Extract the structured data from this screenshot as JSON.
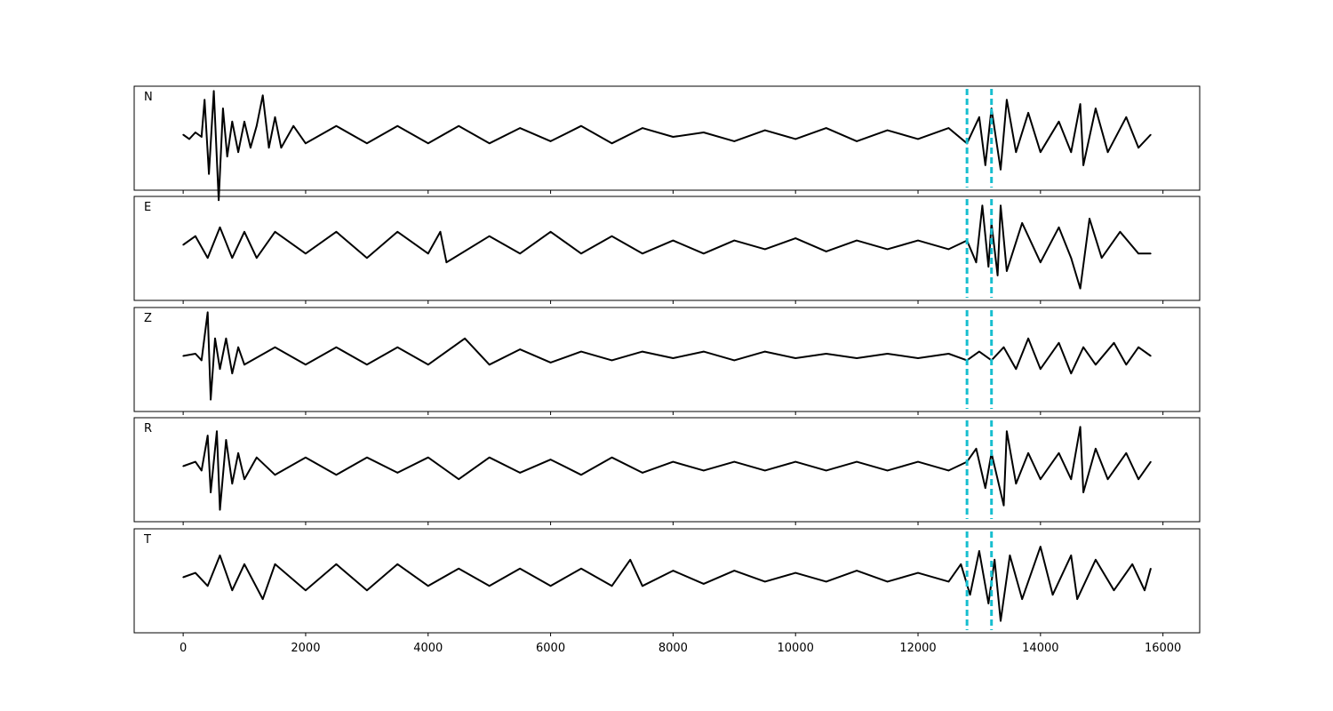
{
  "chart_data": {
    "type": "line",
    "xlim": [
      -800,
      16600
    ],
    "x_ticks": [
      "0",
      "2000",
      "4000",
      "6000",
      "8000",
      "10000",
      "12000",
      "14000",
      "16000"
    ],
    "x_tick_values": [
      0,
      2000,
      4000,
      6000,
      8000,
      10000,
      12000,
      14000,
      16000
    ],
    "markers": [
      {
        "x": 12800,
        "style": "dashed",
        "color": "#17becf"
      },
      {
        "x": 13200,
        "style": "dashed",
        "color": "#17becf"
      }
    ],
    "trace_color": "#000000",
    "grid": false,
    "y_ticks_shown": false,
    "panels": [
      {
        "label": "N",
        "series": [
          {
            "x": 0,
            "y": 0.0
          },
          {
            "x": 100,
            "y": -0.1
          },
          {
            "x": 200,
            "y": 0.05
          },
          {
            "x": 300,
            "y": -0.05
          },
          {
            "x": 350,
            "y": 0.8
          },
          {
            "x": 420,
            "y": -0.9
          },
          {
            "x": 500,
            "y": 1.0
          },
          {
            "x": 580,
            "y": -1.5
          },
          {
            "x": 650,
            "y": 0.6
          },
          {
            "x": 720,
            "y": -0.5
          },
          {
            "x": 800,
            "y": 0.3
          },
          {
            "x": 900,
            "y": -0.4
          },
          {
            "x": 1000,
            "y": 0.3
          },
          {
            "x": 1100,
            "y": -0.3
          },
          {
            "x": 1200,
            "y": 0.2
          },
          {
            "x": 1300,
            "y": 0.9
          },
          {
            "x": 1400,
            "y": -0.3
          },
          {
            "x": 1500,
            "y": 0.4
          },
          {
            "x": 1600,
            "y": -0.3
          },
          {
            "x": 1800,
            "y": 0.2
          },
          {
            "x": 2000,
            "y": -0.2
          },
          {
            "x": 2500,
            "y": 0.2
          },
          {
            "x": 3000,
            "y": -0.2
          },
          {
            "x": 3500,
            "y": 0.2
          },
          {
            "x": 4000,
            "y": -0.2
          },
          {
            "x": 4500,
            "y": 0.2
          },
          {
            "x": 5000,
            "y": -0.2
          },
          {
            "x": 5500,
            "y": 0.15
          },
          {
            "x": 6000,
            "y": -0.15
          },
          {
            "x": 6500,
            "y": 0.2
          },
          {
            "x": 7000,
            "y": -0.2
          },
          {
            "x": 7500,
            "y": 0.15
          },
          {
            "x": 8000,
            "y": -0.05
          },
          {
            "x": 8500,
            "y": 0.05
          },
          {
            "x": 9000,
            "y": -0.15
          },
          {
            "x": 9500,
            "y": 0.1
          },
          {
            "x": 10000,
            "y": -0.1
          },
          {
            "x": 10500,
            "y": 0.15
          },
          {
            "x": 11000,
            "y": -0.15
          },
          {
            "x": 11500,
            "y": 0.1
          },
          {
            "x": 12000,
            "y": -0.1
          },
          {
            "x": 12500,
            "y": 0.15
          },
          {
            "x": 12800,
            "y": -0.2
          },
          {
            "x": 13000,
            "y": 0.4
          },
          {
            "x": 13100,
            "y": -0.7
          },
          {
            "x": 13200,
            "y": 0.6
          },
          {
            "x": 13350,
            "y": -0.8
          },
          {
            "x": 13450,
            "y": 0.8
          },
          {
            "x": 13600,
            "y": -0.4
          },
          {
            "x": 13800,
            "y": 0.5
          },
          {
            "x": 14000,
            "y": -0.4
          },
          {
            "x": 14300,
            "y": 0.3
          },
          {
            "x": 14500,
            "y": -0.4
          },
          {
            "x": 14650,
            "y": 0.7
          },
          {
            "x": 14700,
            "y": -0.7
          },
          {
            "x": 14900,
            "y": 0.6
          },
          {
            "x": 15100,
            "y": -0.4
          },
          {
            "x": 15400,
            "y": 0.4
          },
          {
            "x": 15600,
            "y": -0.3
          },
          {
            "x": 15800,
            "y": 0.0
          }
        ]
      },
      {
        "label": "E",
        "series": [
          {
            "x": 0,
            "y": 0.0
          },
          {
            "x": 200,
            "y": 0.2
          },
          {
            "x": 400,
            "y": -0.3
          },
          {
            "x": 600,
            "y": 0.4
          },
          {
            "x": 800,
            "y": -0.3
          },
          {
            "x": 1000,
            "y": 0.3
          },
          {
            "x": 1200,
            "y": -0.3
          },
          {
            "x": 1500,
            "y": 0.3
          },
          {
            "x": 2000,
            "y": -0.2
          },
          {
            "x": 2500,
            "y": 0.3
          },
          {
            "x": 3000,
            "y": -0.3
          },
          {
            "x": 3500,
            "y": 0.3
          },
          {
            "x": 4000,
            "y": -0.2
          },
          {
            "x": 4200,
            "y": 0.3
          },
          {
            "x": 4300,
            "y": -0.4
          },
          {
            "x": 5000,
            "y": 0.2
          },
          {
            "x": 5500,
            "y": -0.2
          },
          {
            "x": 6000,
            "y": 0.3
          },
          {
            "x": 6500,
            "y": -0.2
          },
          {
            "x": 7000,
            "y": 0.2
          },
          {
            "x": 7500,
            "y": -0.2
          },
          {
            "x": 8000,
            "y": 0.1
          },
          {
            "x": 8500,
            "y": -0.2
          },
          {
            "x": 9000,
            "y": 0.1
          },
          {
            "x": 9500,
            "y": -0.1
          },
          {
            "x": 10000,
            "y": 0.15
          },
          {
            "x": 10500,
            "y": -0.15
          },
          {
            "x": 11000,
            "y": 0.1
          },
          {
            "x": 11500,
            "y": -0.1
          },
          {
            "x": 12000,
            "y": 0.1
          },
          {
            "x": 12500,
            "y": -0.1
          },
          {
            "x": 12800,
            "y": 0.1
          },
          {
            "x": 12950,
            "y": -0.4
          },
          {
            "x": 13050,
            "y": 0.9
          },
          {
            "x": 13150,
            "y": -0.5
          },
          {
            "x": 13200,
            "y": 0.5
          },
          {
            "x": 13300,
            "y": -0.7
          },
          {
            "x": 13350,
            "y": 0.9
          },
          {
            "x": 13450,
            "y": -0.6
          },
          {
            "x": 13700,
            "y": 0.5
          },
          {
            "x": 14000,
            "y": -0.4
          },
          {
            "x": 14300,
            "y": 0.4
          },
          {
            "x": 14500,
            "y": -0.3
          },
          {
            "x": 14650,
            "y": -1.0
          },
          {
            "x": 14800,
            "y": 0.6
          },
          {
            "x": 15000,
            "y": -0.3
          },
          {
            "x": 15300,
            "y": 0.3
          },
          {
            "x": 15600,
            "y": -0.2
          },
          {
            "x": 15800,
            "y": -0.2
          }
        ]
      },
      {
        "label": "Z",
        "series": [
          {
            "x": 0,
            "y": 0.0
          },
          {
            "x": 200,
            "y": 0.05
          },
          {
            "x": 300,
            "y": -0.1
          },
          {
            "x": 400,
            "y": 1.0
          },
          {
            "x": 450,
            "y": -1.0
          },
          {
            "x": 520,
            "y": 0.4
          },
          {
            "x": 600,
            "y": -0.3
          },
          {
            "x": 700,
            "y": 0.4
          },
          {
            "x": 800,
            "y": -0.4
          },
          {
            "x": 900,
            "y": 0.2
          },
          {
            "x": 1000,
            "y": -0.2
          },
          {
            "x": 1500,
            "y": 0.2
          },
          {
            "x": 2000,
            "y": -0.2
          },
          {
            "x": 2500,
            "y": 0.2
          },
          {
            "x": 3000,
            "y": -0.2
          },
          {
            "x": 3500,
            "y": 0.2
          },
          {
            "x": 4000,
            "y": -0.2
          },
          {
            "x": 4600,
            "y": 0.4
          },
          {
            "x": 5000,
            "y": -0.2
          },
          {
            "x": 5500,
            "y": 0.15
          },
          {
            "x": 6000,
            "y": -0.15
          },
          {
            "x": 6500,
            "y": 0.1
          },
          {
            "x": 7000,
            "y": -0.1
          },
          {
            "x": 7500,
            "y": 0.1
          },
          {
            "x": 8000,
            "y": -0.05
          },
          {
            "x": 8500,
            "y": 0.1
          },
          {
            "x": 9000,
            "y": -0.1
          },
          {
            "x": 9500,
            "y": 0.1
          },
          {
            "x": 10000,
            "y": -0.05
          },
          {
            "x": 10500,
            "y": 0.05
          },
          {
            "x": 11000,
            "y": -0.05
          },
          {
            "x": 11500,
            "y": 0.05
          },
          {
            "x": 12000,
            "y": -0.05
          },
          {
            "x": 12500,
            "y": 0.05
          },
          {
            "x": 12800,
            "y": -0.1
          },
          {
            "x": 13000,
            "y": 0.1
          },
          {
            "x": 13200,
            "y": -0.1
          },
          {
            "x": 13400,
            "y": 0.2
          },
          {
            "x": 13600,
            "y": -0.3
          },
          {
            "x": 13800,
            "y": 0.4
          },
          {
            "x": 14000,
            "y": -0.3
          },
          {
            "x": 14300,
            "y": 0.3
          },
          {
            "x": 14500,
            "y": -0.4
          },
          {
            "x": 14700,
            "y": 0.2
          },
          {
            "x": 14900,
            "y": -0.2
          },
          {
            "x": 15200,
            "y": 0.3
          },
          {
            "x": 15400,
            "y": -0.2
          },
          {
            "x": 15600,
            "y": 0.2
          },
          {
            "x": 15800,
            "y": 0.0
          }
        ]
      },
      {
        "label": "R",
        "series": [
          {
            "x": 0,
            "y": 0.0
          },
          {
            "x": 200,
            "y": 0.1
          },
          {
            "x": 300,
            "y": -0.1
          },
          {
            "x": 400,
            "y": 0.7
          },
          {
            "x": 450,
            "y": -0.6
          },
          {
            "x": 550,
            "y": 0.8
          },
          {
            "x": 600,
            "y": -1.0
          },
          {
            "x": 700,
            "y": 0.6
          },
          {
            "x": 800,
            "y": -0.4
          },
          {
            "x": 900,
            "y": 0.3
          },
          {
            "x": 1000,
            "y": -0.3
          },
          {
            "x": 1200,
            "y": 0.2
          },
          {
            "x": 1500,
            "y": -0.2
          },
          {
            "x": 2000,
            "y": 0.2
          },
          {
            "x": 2500,
            "y": -0.2
          },
          {
            "x": 3000,
            "y": 0.2
          },
          {
            "x": 3500,
            "y": -0.15
          },
          {
            "x": 4000,
            "y": 0.2
          },
          {
            "x": 4500,
            "y": -0.3
          },
          {
            "x": 5000,
            "y": 0.2
          },
          {
            "x": 5500,
            "y": -0.15
          },
          {
            "x": 6000,
            "y": 0.15
          },
          {
            "x": 6500,
            "y": -0.2
          },
          {
            "x": 7000,
            "y": 0.2
          },
          {
            "x": 7500,
            "y": -0.15
          },
          {
            "x": 8000,
            "y": 0.1
          },
          {
            "x": 8500,
            "y": -0.1
          },
          {
            "x": 9000,
            "y": 0.1
          },
          {
            "x": 9500,
            "y": -0.1
          },
          {
            "x": 10000,
            "y": 0.1
          },
          {
            "x": 10500,
            "y": -0.1
          },
          {
            "x": 11000,
            "y": 0.1
          },
          {
            "x": 11500,
            "y": -0.1
          },
          {
            "x": 12000,
            "y": 0.1
          },
          {
            "x": 12500,
            "y": -0.1
          },
          {
            "x": 12800,
            "y": 0.1
          },
          {
            "x": 12950,
            "y": 0.4
          },
          {
            "x": 13100,
            "y": -0.5
          },
          {
            "x": 13200,
            "y": 0.3
          },
          {
            "x": 13300,
            "y": -0.3
          },
          {
            "x": 13400,
            "y": -0.9
          },
          {
            "x": 13450,
            "y": 0.8
          },
          {
            "x": 13600,
            "y": -0.4
          },
          {
            "x": 13800,
            "y": 0.3
          },
          {
            "x": 14000,
            "y": -0.3
          },
          {
            "x": 14300,
            "y": 0.3
          },
          {
            "x": 14500,
            "y": -0.3
          },
          {
            "x": 14650,
            "y": 0.9
          },
          {
            "x": 14700,
            "y": -0.6
          },
          {
            "x": 14900,
            "y": 0.4
          },
          {
            "x": 15100,
            "y": -0.3
          },
          {
            "x": 15400,
            "y": 0.3
          },
          {
            "x": 15600,
            "y": -0.3
          },
          {
            "x": 15800,
            "y": 0.1
          }
        ]
      },
      {
        "label": "T",
        "series": [
          {
            "x": 0,
            "y": 0.0
          },
          {
            "x": 200,
            "y": 0.1
          },
          {
            "x": 400,
            "y": -0.2
          },
          {
            "x": 600,
            "y": 0.5
          },
          {
            "x": 800,
            "y": -0.3
          },
          {
            "x": 1000,
            "y": 0.3
          },
          {
            "x": 1300,
            "y": -0.5
          },
          {
            "x": 1500,
            "y": 0.3
          },
          {
            "x": 2000,
            "y": -0.3
          },
          {
            "x": 2500,
            "y": 0.3
          },
          {
            "x": 3000,
            "y": -0.3
          },
          {
            "x": 3500,
            "y": 0.3
          },
          {
            "x": 4000,
            "y": -0.2
          },
          {
            "x": 4500,
            "y": 0.2
          },
          {
            "x": 5000,
            "y": -0.2
          },
          {
            "x": 5500,
            "y": 0.2
          },
          {
            "x": 6000,
            "y": -0.2
          },
          {
            "x": 6500,
            "y": 0.2
          },
          {
            "x": 7000,
            "y": -0.2
          },
          {
            "x": 7300,
            "y": 0.4
          },
          {
            "x": 7500,
            "y": -0.2
          },
          {
            "x": 8000,
            "y": 0.15
          },
          {
            "x": 8500,
            "y": -0.15
          },
          {
            "x": 9000,
            "y": 0.15
          },
          {
            "x": 9500,
            "y": -0.1
          },
          {
            "x": 10000,
            "y": 0.1
          },
          {
            "x": 10500,
            "y": -0.1
          },
          {
            "x": 11000,
            "y": 0.15
          },
          {
            "x": 11500,
            "y": -0.1
          },
          {
            "x": 12000,
            "y": 0.1
          },
          {
            "x": 12500,
            "y": -0.1
          },
          {
            "x": 12700,
            "y": 0.3
          },
          {
            "x": 12850,
            "y": -0.4
          },
          {
            "x": 13000,
            "y": 0.6
          },
          {
            "x": 13150,
            "y": -0.6
          },
          {
            "x": 13250,
            "y": 0.4
          },
          {
            "x": 13350,
            "y": -1.0
          },
          {
            "x": 13500,
            "y": 0.5
          },
          {
            "x": 13700,
            "y": -0.5
          },
          {
            "x": 14000,
            "y": 0.7
          },
          {
            "x": 14200,
            "y": -0.4
          },
          {
            "x": 14500,
            "y": 0.5
          },
          {
            "x": 14600,
            "y": -0.5
          },
          {
            "x": 14900,
            "y": 0.4
          },
          {
            "x": 15200,
            "y": -0.3
          },
          {
            "x": 15500,
            "y": 0.3
          },
          {
            "x": 15700,
            "y": -0.3
          },
          {
            "x": 15800,
            "y": 0.2
          }
        ]
      }
    ]
  }
}
